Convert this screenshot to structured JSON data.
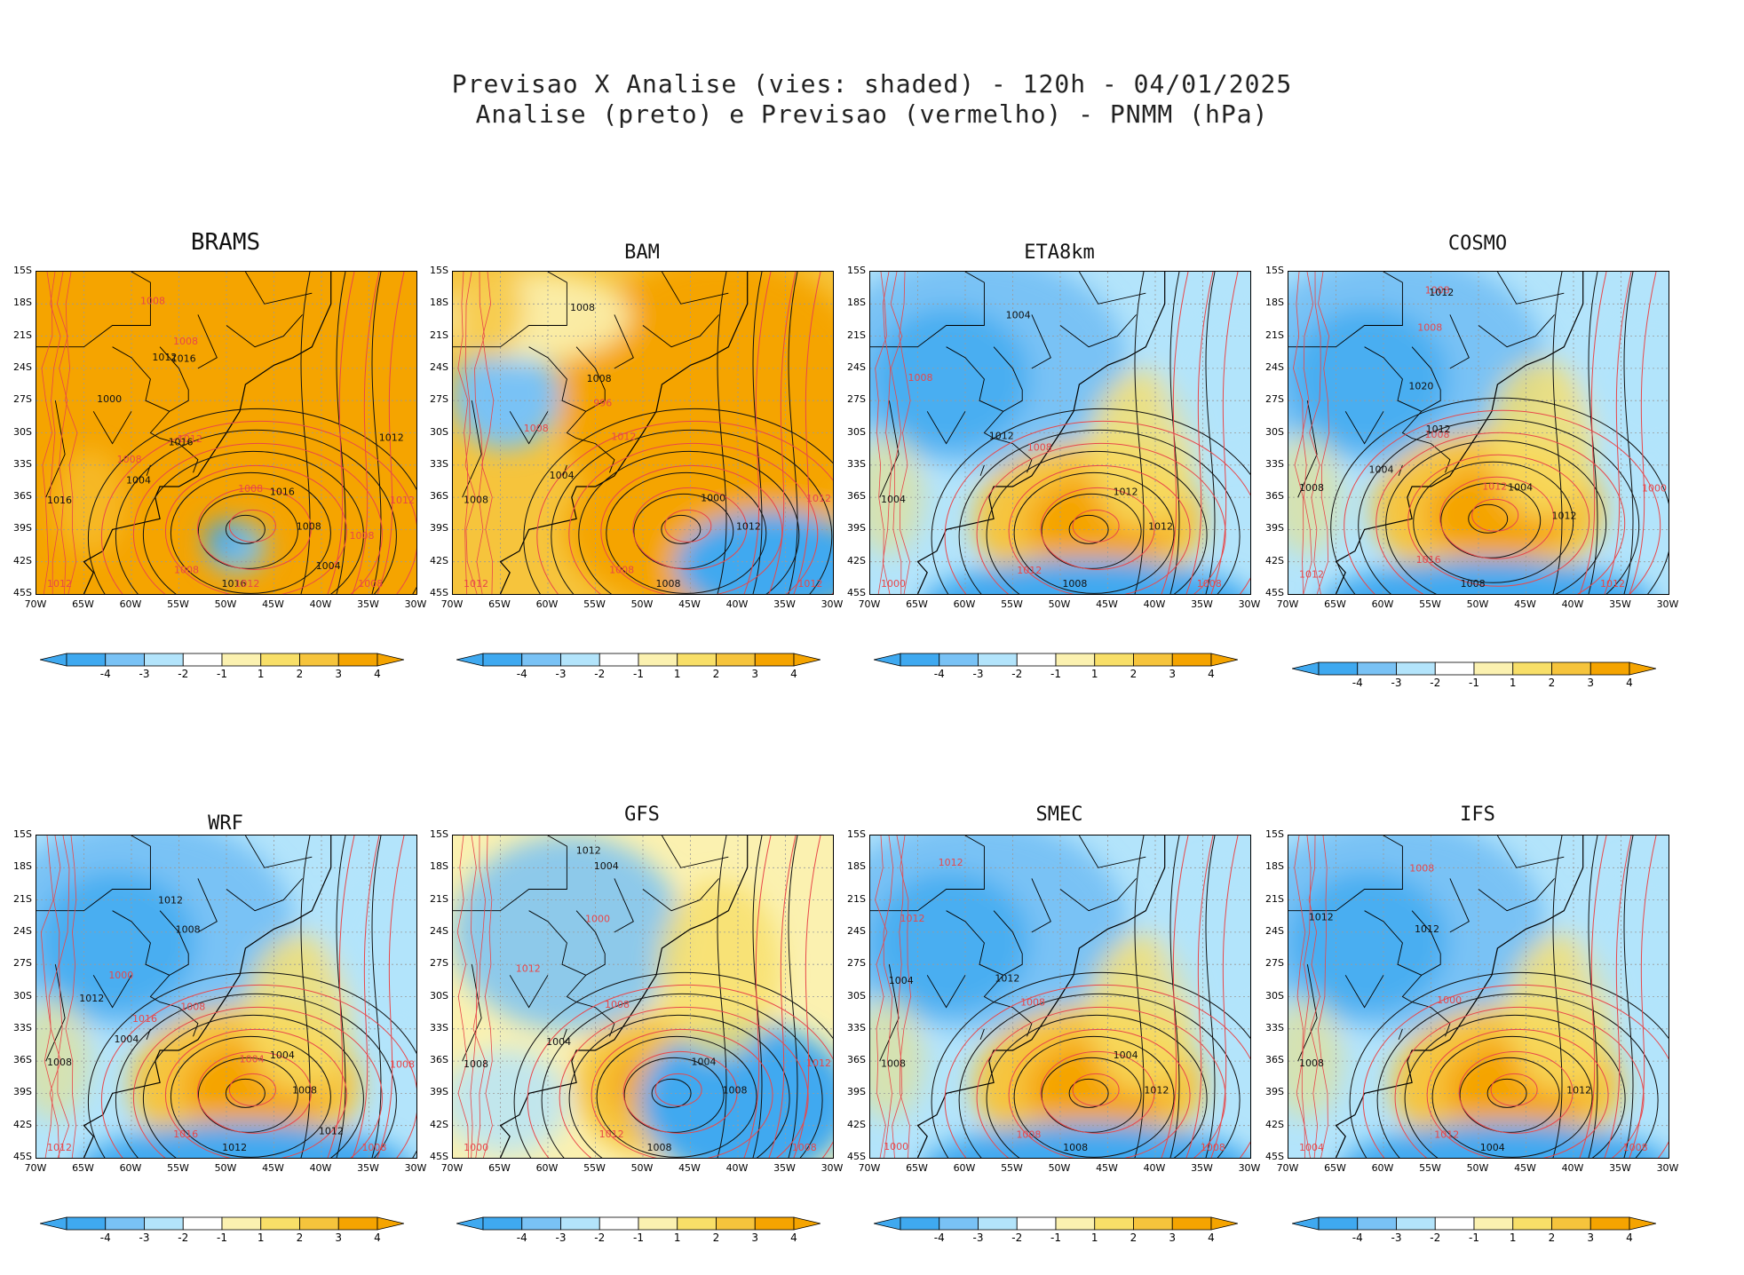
{
  "figure": {
    "title_line1": "Previsao X Analise (vies: shaded) - 120h - 04/01/2025",
    "title_line2": "Analise (preto) e Previsao (vermelho) - PNMM (hPa)"
  },
  "colors": {
    "neg4": "#3fa9f0",
    "neg3": "#79c2f5",
    "neg2": "#b3e4fb",
    "neg1": "#ffffff",
    "pos1": "#fbf1b0",
    "pos2": "#f8df68",
    "pos3": "#f6c43c",
    "pos4": "#f5a400",
    "analysis": "#111111",
    "forecast": "#e8474a"
  },
  "colorbar": {
    "labels": [
      "-4",
      "-3",
      "-2",
      "-1",
      "1",
      "2",
      "3",
      "4"
    ]
  },
  "axes": {
    "lat_labels": [
      "15S",
      "18S",
      "21S",
      "24S",
      "27S",
      "30S",
      "33S",
      "36S",
      "39S",
      "42S",
      "45S"
    ],
    "lon_labels": [
      "70W",
      "65W",
      "60W",
      "55W",
      "50W",
      "45W",
      "40W",
      "35W",
      "30W"
    ]
  },
  "chart_data": [
    {
      "model": "BRAMS",
      "type": "heatmap",
      "bias_pattern": "positive-dominant",
      "low_center": [
        -48,
        -39
      ],
      "labels": [
        "1008",
        "1008",
        "1012",
        "1008",
        "1016",
        "1008",
        "1016",
        "1012",
        "1016",
        "1012",
        "1016",
        "1008",
        "1004",
        "1012",
        "1000",
        "1008",
        "1004",
        "1008",
        "1012",
        "1012",
        "1016",
        "1008"
      ]
    },
    {
      "model": "BAM",
      "type": "heatmap",
      "bias_pattern": "positive-east",
      "low_center": [
        -46,
        -39
      ],
      "labels": [
        "1012",
        "1008",
        "1008",
        "1012",
        "1008",
        "1008",
        "1008",
        "1012",
        "1008",
        "1012",
        "1000",
        "996",
        "1004",
        "1012"
      ]
    },
    {
      "model": "ETA8km",
      "type": "heatmap",
      "bias_pattern": "negative-north-positive-low",
      "low_center": [
        -47,
        -39
      ],
      "labels": [
        "1012",
        "1012",
        "1012",
        "1008",
        "1004",
        "1008",
        "1008",
        "1008",
        "1004",
        "1000",
        "1012"
      ]
    },
    {
      "model": "COSMO",
      "type": "heatmap",
      "bias_pattern": "negative-north-positive-low",
      "low_center": [
        -49,
        -38
      ],
      "labels": [
        "1012",
        "1016",
        "1020",
        "1012",
        "1008",
        "1008",
        "1008",
        "1008",
        "1012",
        "1012",
        "1004",
        "1008",
        "1004",
        "1000",
        "1012",
        "1012"
      ]
    },
    {
      "model": "WRF",
      "type": "heatmap",
      "bias_pattern": "negative-north-positive-low",
      "low_center": [
        -48,
        -39
      ],
      "labels": [
        "1008",
        "1016",
        "1012",
        "1008",
        "1008",
        "1016",
        "1012",
        "1008",
        "1008",
        "1012",
        "1004",
        "1000",
        "1004",
        "1008",
        "1012",
        "1004",
        "1012"
      ]
    },
    {
      "model": "GFS",
      "type": "heatmap",
      "bias_pattern": "mixed",
      "low_center": [
        -47,
        -39
      ],
      "labels": [
        "1008",
        "1012",
        "1012",
        "1008",
        "1008",
        "1012",
        "1008",
        "1008",
        "1004",
        "1000",
        "1004",
        "1000",
        "1004",
        "1012"
      ]
    },
    {
      "model": "SMEC",
      "type": "heatmap",
      "bias_pattern": "negative-north-positive-low",
      "low_center": [
        -47,
        -39
      ],
      "labels": [
        "1012",
        "1008",
        "1012",
        "1008",
        "1008",
        "1012",
        "1008",
        "1008",
        "1004",
        "1000",
        "1004",
        "1012"
      ]
    },
    {
      "model": "IFS",
      "type": "heatmap",
      "bias_pattern": "negative-north-positive-low",
      "low_center": [
        -47,
        -39
      ],
      "labels": [
        "1012",
        "1012",
        "1012",
        "1008",
        "1008",
        "1008",
        "1004",
        "1000",
        "1012",
        "1004"
      ]
    }
  ]
}
